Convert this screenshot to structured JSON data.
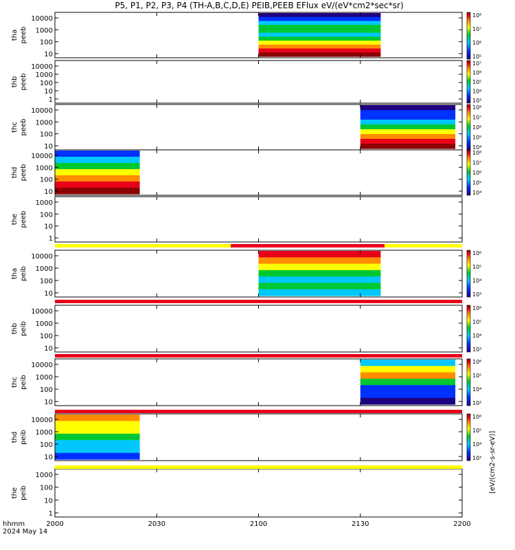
{
  "chart_data": {
    "type": "heatmap",
    "title": "P5, P1, P2, P3, P4 (TH-A,B,C,D,E) PEIB,PEEB EFlux eV/(eV*cm2*sec*sr)",
    "x_ticks": [
      "2000",
      "2030",
      "2100",
      "2130",
      "2200"
    ],
    "x_range": [
      "20:00",
      "22:00"
    ],
    "x_axis_label": "hhmm",
    "date_label": "2024 May 14",
    "colorbar_label": "[eV/(cm2-s-sr-eV)]",
    "panels": [
      {
        "id": "tha-peeb",
        "label1": "tha",
        "label2": "peeb",
        "yticks": [
          "10000",
          "1000",
          "100",
          "10"
        ],
        "data_interval": [
          "21:00",
          "21:36"
        ],
        "colorbar_ticks": [
          "10⁸",
          "10⁷",
          "10⁶",
          "10⁵"
        ]
      },
      {
        "id": "thb-peeb",
        "label1": "thb",
        "label2": "peeb",
        "yticks": [
          "10000",
          "1000",
          "100",
          "10",
          "1"
        ],
        "data_interval": null,
        "colorbar_ticks": [
          "10⁷",
          "10⁶",
          "10⁵",
          "10⁴",
          "10³"
        ]
      },
      {
        "id": "thc-peeb",
        "label1": "thc",
        "label2": "peeb",
        "yticks": [
          "10000",
          "1000",
          "100",
          "10"
        ],
        "data_interval": [
          "21:30",
          "21:58"
        ],
        "colorbar_ticks": [
          "10⁸",
          "10⁷",
          "10⁶",
          "10⁵",
          "10⁴"
        ]
      },
      {
        "id": "thd-peeb",
        "label1": "thd",
        "label2": "peeb",
        "yticks": [
          "10000",
          "1000",
          "100",
          "10"
        ],
        "data_interval": [
          "20:00",
          "20:25"
        ],
        "colorbar_ticks": [
          "10⁸",
          "10⁷",
          "10⁶",
          "10⁵",
          "10⁴"
        ]
      },
      {
        "id": "the-peeb",
        "label1": "the",
        "label2": "peeb",
        "yticks": [
          "1000",
          "100",
          "10",
          "1"
        ],
        "data_interval": null,
        "colorbar_ticks": []
      },
      {
        "id": "tha-peib",
        "label1": "tha",
        "label2": "peib",
        "yticks": [
          "10000",
          "1000",
          "100",
          "10"
        ],
        "data_interval": [
          "21:00",
          "21:36"
        ],
        "colorbar_ticks": [
          "10⁶",
          "10⁵",
          "10⁴",
          "10³"
        ]
      },
      {
        "id": "thb-peib",
        "label1": "thb",
        "label2": "peib",
        "yticks": [
          "10000",
          "1000",
          "100",
          "10"
        ],
        "data_interval": null,
        "colorbar_ticks": [
          "10⁶",
          "10⁵",
          "10⁴",
          "10³"
        ]
      },
      {
        "id": "thc-peib",
        "label1": "thc",
        "label2": "peib",
        "yticks": [
          "10000",
          "1000",
          "100",
          "10"
        ],
        "data_interval": [
          "21:30",
          "21:58"
        ],
        "colorbar_ticks": [
          "10⁶",
          "10⁵",
          "10⁴",
          "10³"
        ]
      },
      {
        "id": "thd-peib",
        "label1": "thd",
        "label2": "peib",
        "yticks": [
          "10000",
          "1000",
          "100",
          "10"
        ],
        "data_interval": [
          "20:00",
          "20:25"
        ],
        "colorbar_ticks": [
          "10⁶",
          "10⁵",
          "10⁴",
          "10³"
        ]
      },
      {
        "id": "the-peib",
        "label1": "the",
        "label2": "peib",
        "yticks": [
          "1000",
          "100",
          "10",
          "1"
        ],
        "data_interval": null,
        "colorbar_ticks": []
      }
    ]
  },
  "colors": {
    "dark_red": "#8b0000",
    "red": "#e8001a",
    "orange": "#ff8c00",
    "yellow": "#ffff00",
    "green": "#00c832",
    "cyan": "#00c8ff",
    "blue": "#0032ff",
    "navy": "#1e0080",
    "status_yellow": "#ffff00",
    "status_red": "#e8001a"
  }
}
